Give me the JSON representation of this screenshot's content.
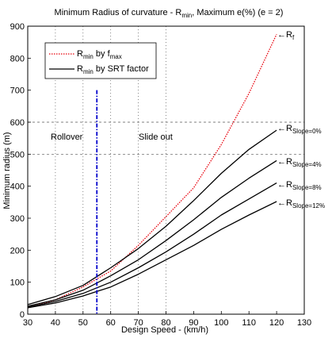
{
  "chart_data": {
    "type": "line",
    "title": {
      "main": "Minimum Radius of curvature - R",
      "sub": "min",
      "rest": ", Maximum e(%) (e = 2)"
    },
    "xlabel": "Design Speed - (km/h)",
    "ylabel": "Minimum radius (m)",
    "xlim": [
      30,
      130
    ],
    "ylim": [
      0,
      900
    ],
    "xticks": [
      30,
      40,
      50,
      60,
      70,
      80,
      90,
      100,
      110,
      120,
      130
    ],
    "yticks": [
      0,
      100,
      200,
      300,
      400,
      500,
      600,
      700,
      800,
      900
    ],
    "grid": "dotted at x = 40, 50, 60, 70, 80; dashed at y = 500, 600",
    "legend": {
      "position": "top-left",
      "entries": [
        {
          "main": "R",
          "sub": "min",
          "rest": " by f",
          "sub2": "max"
        },
        {
          "main": "R",
          "sub": "min",
          "rest": " by SRT factor",
          "sub2": ""
        }
      ]
    },
    "series": [
      {
        "color": "#e8000b",
        "style": "dotted",
        "x": [
          30,
          40,
          50,
          60,
          70,
          80,
          90,
          100,
          110,
          120
        ],
        "y": [
          20,
          45,
          85,
          135,
          215,
          305,
          395,
          530,
          690,
          875
        ]
      },
      {
        "color": "#000000",
        "style": "solid",
        "x": [
          30,
          40,
          50,
          60,
          70,
          80,
          90,
          100,
          110,
          120
        ],
        "y": [
          30,
          55,
          90,
          145,
          205,
          275,
          355,
          440,
          515,
          575
        ]
      },
      {
        "color": "#000000",
        "style": "solid",
        "x": [
          30,
          40,
          50,
          60,
          70,
          80,
          90,
          100,
          110,
          120
        ],
        "y": [
          25,
          45,
          75,
          120,
          170,
          230,
          295,
          365,
          425,
          480
        ]
      },
      {
        "color": "#000000",
        "style": "solid",
        "x": [
          30,
          40,
          50,
          60,
          70,
          80,
          90,
          100,
          110,
          120
        ],
        "y": [
          22,
          40,
          65,
          100,
          145,
          195,
          250,
          310,
          360,
          410
        ]
      },
      {
        "color": "#000000",
        "style": "solid",
        "x": [
          30,
          40,
          50,
          60,
          70,
          80,
          90,
          100,
          110,
          120
        ],
        "y": [
          20,
          35,
          57,
          85,
          125,
          170,
          215,
          265,
          310,
          352
        ]
      }
    ],
    "vline": {
      "x": 55,
      "color": "#0000cc",
      "style": "dash-dot",
      "y_top": 700
    },
    "annotations": {
      "rollover": "Rollover",
      "slideout": "Slide out",
      "r_f": {
        "arrow": "←",
        "main": "R",
        "sub": "f"
      },
      "r_slope0": {
        "arrow": "←",
        "main": "R",
        "sub": "Slope=0%"
      },
      "r_slope4": {
        "arrow": "←",
        "main": "R",
        "sub": "Slope=4%"
      },
      "r_slope8": {
        "arrow": "←",
        "main": "R",
        "sub": "Slope=8%"
      },
      "r_slope12": {
        "arrow": "←",
        "main": "R",
        "sub": "Slope=12%"
      }
    }
  }
}
